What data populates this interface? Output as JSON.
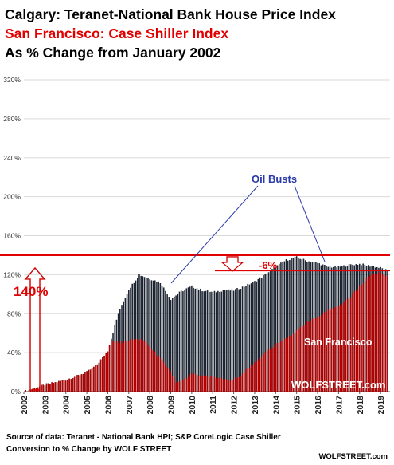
{
  "titles": {
    "line1": "Calgary: Teranet-National Bank House Price Index",
    "line2": "San Francisco: Case Shiller Index",
    "line3": "As % Change from January 2002"
  },
  "footer": {
    "source": "Source of data: Teranet - National Bank HPI; S&P CoreLogic Case Shiller",
    "conversion": "Conversion to % Change by WOLF STREET",
    "brand": "WOLFSTREET.com"
  },
  "colors": {
    "calgary": "#1c2431",
    "san_francisco": "#b30000",
    "reference_line": "#e00000",
    "annotation_blue": "#2a3aa8"
  },
  "chart_data": {
    "type": "bar",
    "x_ticks": [
      "2002",
      "2003",
      "2004",
      "2005",
      "2006",
      "2007",
      "2008",
      "2009",
      "2010",
      "2011",
      "2012",
      "2013",
      "2014",
      "2015",
      "2016",
      "2017",
      "2018",
      "2019"
    ],
    "y_ticks": [
      "0%",
      "40%",
      "80%",
      "120%",
      "160%",
      "200%",
      "240%",
      "280%",
      "320%"
    ],
    "ylim": [
      0,
      320
    ],
    "grid": true,
    "series": [
      {
        "name": "Calgary",
        "color": "#1c2431",
        "points": [
          [
            2002.0,
            0
          ],
          [
            2003.0,
            7
          ],
          [
            2004.0,
            12
          ],
          [
            2005.0,
            20
          ],
          [
            2005.5,
            28
          ],
          [
            2006.0,
            42
          ],
          [
            2006.5,
            80
          ],
          [
            2007.0,
            105
          ],
          [
            2007.5,
            120
          ],
          [
            2008.0,
            116
          ],
          [
            2008.5,
            112
          ],
          [
            2009.0,
            95
          ],
          [
            2009.5,
            103
          ],
          [
            2010.0,
            108
          ],
          [
            2010.5,
            104
          ],
          [
            2011.0,
            102
          ],
          [
            2011.5,
            104
          ],
          [
            2012.0,
            104
          ],
          [
            2012.5,
            108
          ],
          [
            2013.0,
            113
          ],
          [
            2013.5,
            120
          ],
          [
            2014.0,
            128
          ],
          [
            2014.5,
            135
          ],
          [
            2015.0,
            138
          ],
          [
            2015.5,
            134
          ],
          [
            2016.0,
            132
          ],
          [
            2016.5,
            128
          ],
          [
            2017.0,
            128
          ],
          [
            2017.5,
            130
          ],
          [
            2018.0,
            131
          ],
          [
            2018.5,
            129
          ],
          [
            2019.0,
            127
          ],
          [
            2019.35,
            124
          ]
        ]
      },
      {
        "name": "San Francisco",
        "color": "#b30000",
        "points": [
          [
            2002.0,
            0
          ],
          [
            2002.5,
            5
          ],
          [
            2003.0,
            8
          ],
          [
            2004.0,
            22
          ],
          [
            2005.0,
            42
          ],
          [
            2005.75,
            50
          ],
          [
            2006.25,
            52
          ],
          [
            2006.75,
            50
          ],
          [
            2007.25,
            55
          ],
          [
            2007.75,
            52
          ],
          [
            2008.25,
            40
          ],
          [
            2008.75,
            28
          ],
          [
            2009.25,
            10
          ],
          [
            2009.6,
            12
          ],
          [
            2010.0,
            18
          ],
          [
            2010.5,
            16
          ],
          [
            2011.0,
            15
          ],
          [
            2011.5,
            12
          ],
          [
            2012.0,
            12
          ],
          [
            2012.5,
            20
          ],
          [
            2013.0,
            30
          ],
          [
            2013.5,
            40
          ],
          [
            2014.0,
            48
          ],
          [
            2014.5,
            55
          ],
          [
            2015.0,
            62
          ],
          [
            2015.5,
            72
          ],
          [
            2016.0,
            76
          ],
          [
            2016.5,
            83
          ],
          [
            2017.0,
            88
          ],
          [
            2017.5,
            96
          ],
          [
            2018.0,
            108
          ],
          [
            2018.5,
            120
          ],
          [
            2019.0,
            122
          ],
          [
            2019.35,
            118
          ]
        ]
      }
    ],
    "annotations": {
      "reference_level_label": "140%",
      "drop_label": "-6%",
      "oil_busts_label": "Oil Busts",
      "sf_label": "San Francisco",
      "watermark": "WOLFSTREET.com"
    }
  }
}
